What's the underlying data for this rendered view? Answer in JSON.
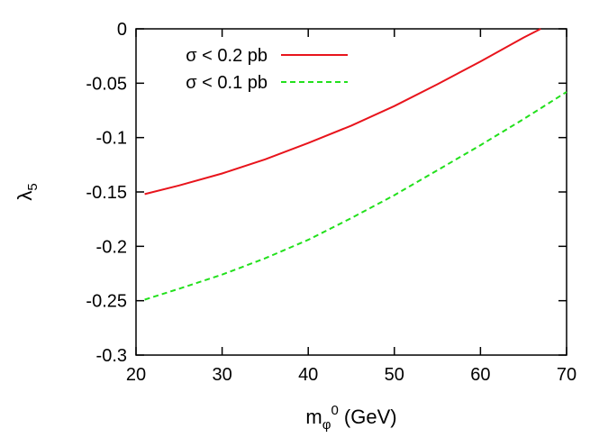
{
  "chart_data": {
    "type": "line",
    "title": "",
    "xlabel": {
      "main": "m",
      "sub": "φ",
      "sup": "0",
      "unit": " (GeV)"
    },
    "ylabel": {
      "main": "λ",
      "sub": "5"
    },
    "xlim": [
      20,
      70
    ],
    "ylim": [
      -0.3,
      0
    ],
    "xticks": [
      20,
      30,
      40,
      50,
      60,
      70
    ],
    "yticks": [
      0,
      -0.05,
      -0.1,
      -0.15,
      -0.2,
      -0.25,
      -0.3
    ],
    "xtick_labels": [
      "20",
      "30",
      "40",
      "50",
      "60",
      "70"
    ],
    "ytick_labels": [
      "0",
      "-0.05",
      "-0.1",
      "-0.15",
      "-0.2",
      "-0.25",
      "-0.3"
    ],
    "grid": false,
    "legend_position": "top-left",
    "series": [
      {
        "name": "σ < 0.2 pb",
        "color": "#e8141c",
        "dash": "solid",
        "x": [
          21,
          25,
          30,
          35,
          40,
          45,
          50,
          55,
          60,
          65,
          67
        ],
        "y": [
          -0.152,
          -0.144,
          -0.133,
          -0.12,
          -0.105,
          -0.089,
          -0.071,
          -0.051,
          -0.03,
          -0.008,
          0.0
        ]
      },
      {
        "name": "σ < 0.1 pb",
        "color": "#22e01c",
        "dash": "dashed",
        "x": [
          21,
          25,
          30,
          35,
          40,
          45,
          50,
          55,
          60,
          65,
          70
        ],
        "y": [
          -0.249,
          -0.239,
          -0.226,
          -0.211,
          -0.194,
          -0.174,
          -0.153,
          -0.13,
          -0.107,
          -0.083,
          -0.058
        ]
      }
    ]
  }
}
